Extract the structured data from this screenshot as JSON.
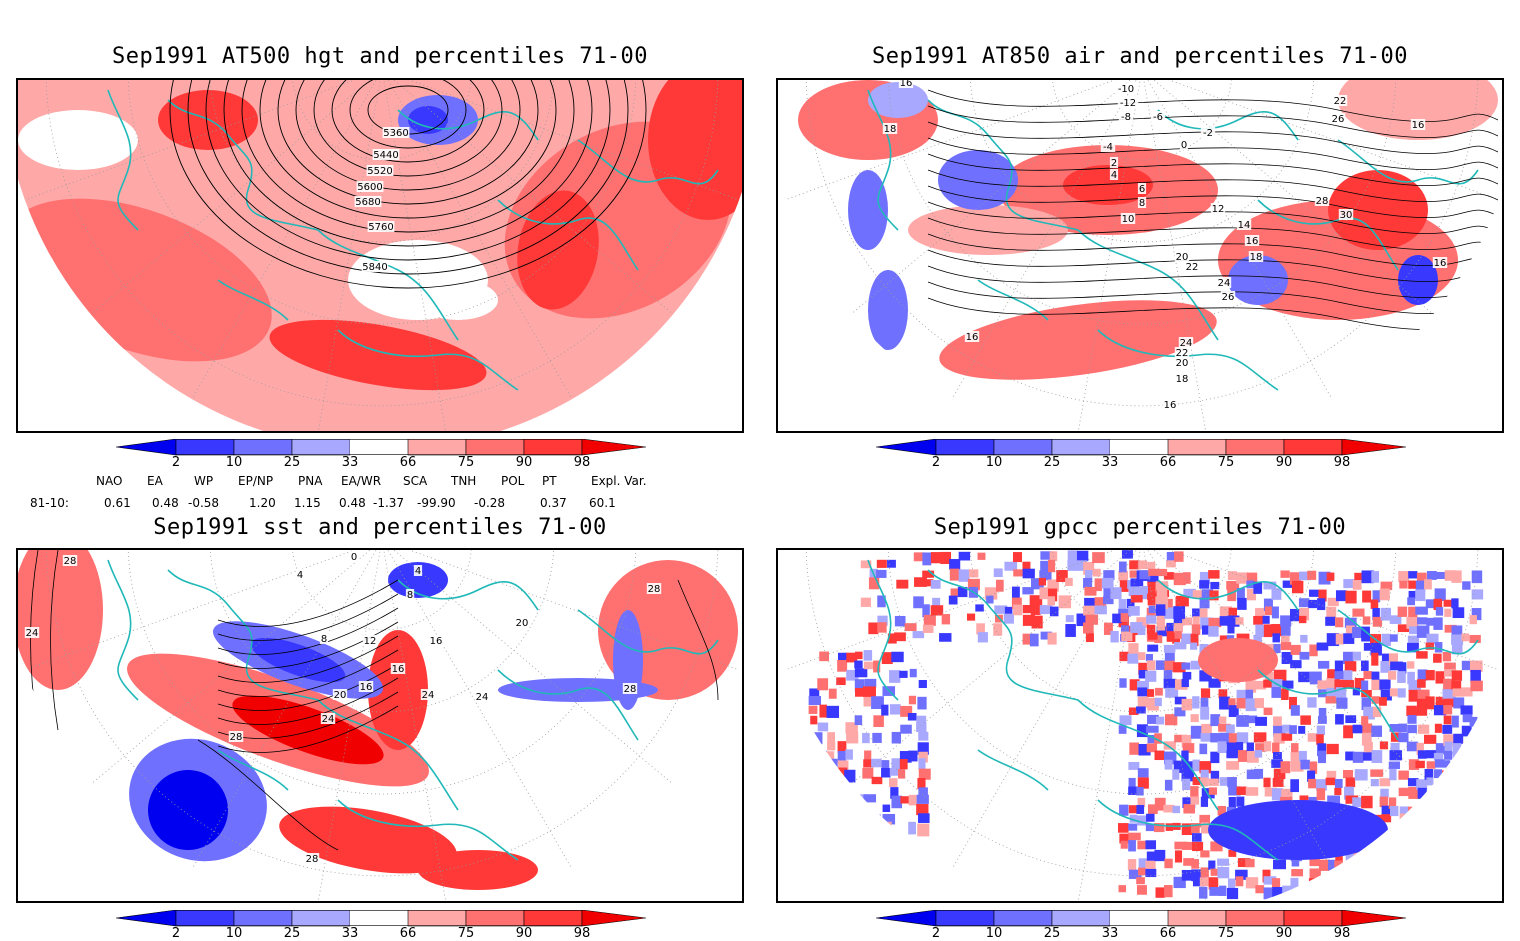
{
  "colors": {
    "deep_blue": "#0000f0",
    "mid_blue": "#3838ff",
    "light_blue": "#7070ff",
    "pale_blue": "#a8a8ff",
    "pale_red": "#ffa8a8",
    "light_red": "#ff7070",
    "mid_red": "#ff3838",
    "deep_red": "#f00000",
    "coast": "#20b8b8",
    "contour": "#000000"
  },
  "colorbar": {
    "labels": [
      "2",
      "10",
      "25",
      "33",
      "66",
      "75",
      "90",
      "98"
    ]
  },
  "panels": [
    {
      "id": "at500",
      "title": "Sep1991 AT500 hgt and percentiles 71-00",
      "contour_labels": [
        "5360",
        "5440",
        "5520",
        "5600",
        "5680",
        "5760",
        "5840"
      ]
    },
    {
      "id": "at850",
      "title": "Sep1991 AT850 air and percentiles 71-00",
      "contour_labels": [
        "16",
        "18",
        "-10",
        "-12",
        "-8",
        "-6",
        "-4",
        "-2",
        "0",
        "2",
        "4",
        "6",
        "8",
        "10",
        "12",
        "14",
        "16",
        "18",
        "20",
        "22",
        "24",
        "26",
        "28",
        "30",
        "22",
        "26",
        "16",
        "16",
        "24",
        "22",
        "20",
        "18",
        "16",
        "16"
      ]
    },
    {
      "id": "sst",
      "title": "Sep1991 sst and percentiles 71-00",
      "contour_labels": [
        "28",
        "24",
        "4",
        "0",
        "8",
        "12",
        "16",
        "20",
        "24",
        "28",
        "28",
        "24",
        "28",
        "20",
        "28",
        "4",
        "8",
        "16",
        "16",
        "24"
      ]
    },
    {
      "id": "gpcc",
      "title": "Sep1991 gpcc percentiles 71-00",
      "contour_labels": []
    }
  ],
  "teleconnections": {
    "headers": [
      "NAO",
      "EA",
      "WP",
      "EP/NP",
      "PNA",
      "EA/WR",
      "SCA",
      "TNH",
      "POL",
      "PT",
      "Expl. Var."
    ],
    "row_label": "81-10:",
    "values": [
      "0.61",
      "0.48",
      "-0.58",
      "1.20",
      "1.15",
      "0.48",
      "-1.37",
      "-99.90",
      "-0.28",
      "0.37",
      "60.1"
    ]
  }
}
